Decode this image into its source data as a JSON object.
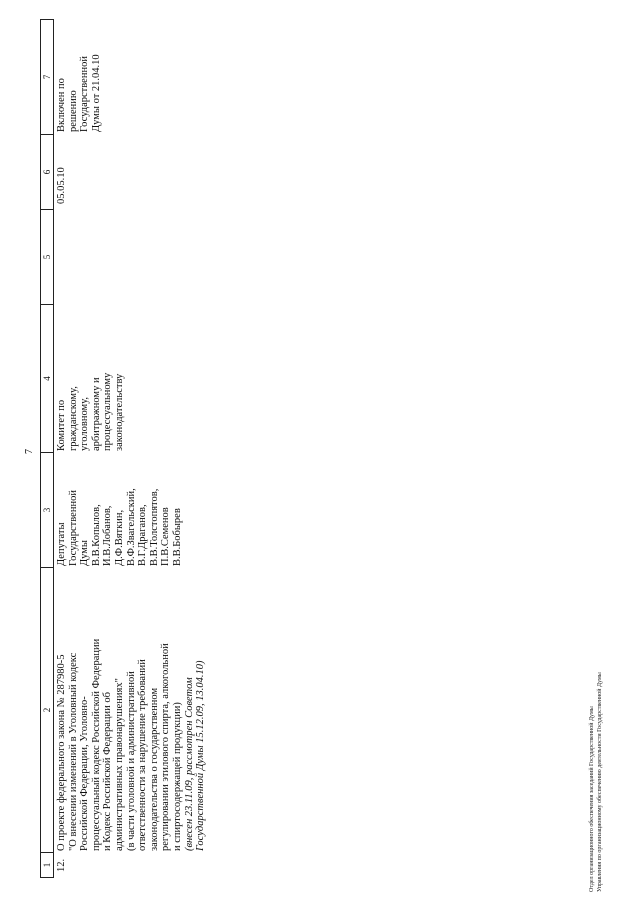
{
  "page_number": "7",
  "table": {
    "header": [
      "1",
      "2",
      "3",
      "4",
      "5",
      "6",
      "7"
    ],
    "rows": [
      {
        "number": "12.",
        "bill": {
          "lines": [
            "О проекте федерального закона № 287980-5",
            "\"О внесении изменений в Уголовный кодекс",
            "Российской Федерации, Уголовно-",
            "процессуальный кодекс Российской Федерации",
            "и Кодекс Российской Федерации об",
            "административных правонарушениях\"",
            "(в части уголовной и административной",
            "ответственности за нарушение требований",
            "законодательства о государственном",
            "регулировании этилового спирта, алкогольной",
            "и спиртосодержащей продукции)"
          ],
          "italic_lines": [
            "(внесен 23.11.09, рассмотрен Советом",
            "Государственной Думы 15.12.09, 13.04.10)"
          ]
        },
        "authors": [
          "Депутаты",
          "Государственной",
          "Думы",
          "В.В.Копылов,",
          "И.В.Лобанов,",
          "Д.Ф.Вяткин,",
          "В.Ф.Звагельский,",
          "В.Г.Драганов,",
          "В.В.Толстопятов,",
          "П.В.Семенов",
          "В.В.Бобырев"
        ],
        "committee": [
          "Комитет по",
          "гражданскому,",
          "уголовному,",
          "арбитражному и",
          "процессуальному",
          "законодательству"
        ],
        "date": "05.05.10",
        "note": [
          "Включен по",
          "решению",
          "Государственной",
          "Думы от 21.04.10"
        ]
      }
    ]
  },
  "footer": [
    "Отдел организационного обеспечения заседаний Государственной Думы",
    "Управления по организационному обеспечению деятельности Государственной Думы"
  ]
}
